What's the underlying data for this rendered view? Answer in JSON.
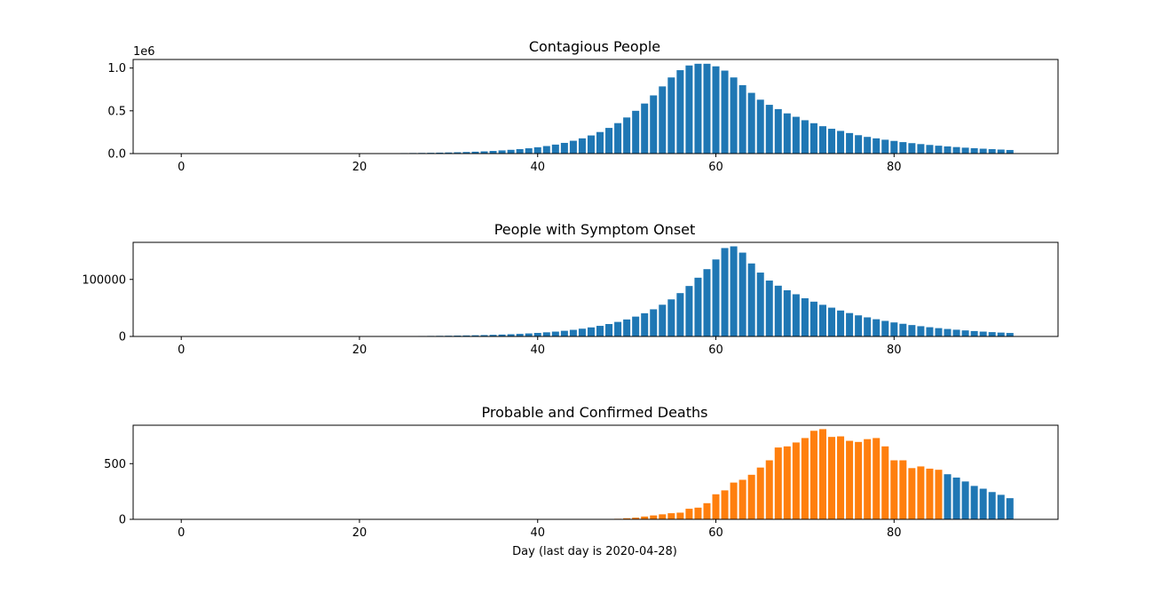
{
  "figure": {
    "xlabel": "Day (last day is 2020-04-28)"
  },
  "colors": {
    "observed": "#1f77b4",
    "highlight": "#ff7f0e"
  },
  "chart_data": [
    {
      "type": "bar",
      "title": "Contagious People",
      "xlim": [
        -5.4,
        98.4
      ],
      "ylim": [
        0,
        1100000
      ],
      "xticks": [
        "0",
        "20",
        "40",
        "60",
        "80"
      ],
      "yticks": [
        "0.0",
        "0.5",
        "1.0"
      ],
      "y_offset_label": "1e6",
      "x_start": 18,
      "values": [
        2000,
        2300,
        2700,
        3100,
        3600,
        4200,
        4900,
        5700,
        6600,
        7700,
        9000,
        11000,
        13000,
        15500,
        18500,
        22000,
        26000,
        31000,
        37000,
        44000,
        52000,
        62000,
        74000,
        88000,
        105000,
        125000,
        150000,
        178000,
        212000,
        252000,
        300000,
        356000,
        422000,
        500000,
        585000,
        680000,
        785000,
        890000,
        975000,
        1030000,
        1050000,
        1050000,
        1020000,
        970000,
        890000,
        800000,
        710000,
        630000,
        570000,
        520000,
        470000,
        430000,
        390000,
        355000,
        320000,
        290000,
        265000,
        240000,
        215000,
        195000,
        178000,
        162000,
        148000,
        134000,
        122000,
        111000,
        101000,
        92000,
        84000,
        76000,
        69000,
        63000,
        57000,
        52000,
        47000,
        42000
      ]
    },
    {
      "type": "bar",
      "title": "People with Symptom Onset",
      "xlim": [
        -5.4,
        98.4
      ],
      "ylim": [
        0,
        165000
      ],
      "xticks": [
        "0",
        "20",
        "40",
        "60",
        "80"
      ],
      "yticks": [
        "0",
        "100000"
      ],
      "x_start": 22,
      "values": [
        400,
        450,
        520,
        600,
        700,
        820,
        960,
        1120,
        1300,
        1520,
        1780,
        2080,
        2430,
        2840,
        3320,
        3880,
        4540,
        5300,
        6200,
        7250,
        8500,
        9950,
        11600,
        13600,
        15900,
        18600,
        21800,
        25500,
        29800,
        34800,
        40700,
        47600,
        55600,
        65000,
        76000,
        88500,
        103000,
        118000,
        135000,
        155000,
        158000,
        147000,
        128000,
        112000,
        98000,
        89000,
        81000,
        74000,
        67000,
        61000,
        55500,
        50500,
        45500,
        41000,
        37000,
        33500,
        30200,
        27300,
        24600,
        22200,
        20000,
        18000,
        16200,
        14600,
        13100,
        11800,
        10600,
        9500,
        8500,
        7600,
        6800,
        6100
      ]
    },
    {
      "type": "bar",
      "title": "Probable and Confirmed Deaths",
      "xlim": [
        -5.4,
        98.4
      ],
      "ylim": [
        0,
        845
      ],
      "xticks": [
        "0",
        "20",
        "40",
        "60",
        "80"
      ],
      "yticks": [
        "0",
        "500"
      ],
      "x_start": 49,
      "values": [
        5,
        10,
        15,
        25,
        35,
        45,
        55,
        60,
        95,
        105,
        145,
        225,
        260,
        330,
        355,
        400,
        465,
        530,
        645,
        655,
        690,
        730,
        795,
        810,
        740,
        745,
        705,
        695,
        720,
        730,
        655,
        530,
        530,
        460,
        475,
        455,
        445,
        405,
        375,
        340,
        300,
        275,
        245,
        220,
        190
      ],
      "colored_highlight_range": [
        49,
        85
      ]
    }
  ]
}
